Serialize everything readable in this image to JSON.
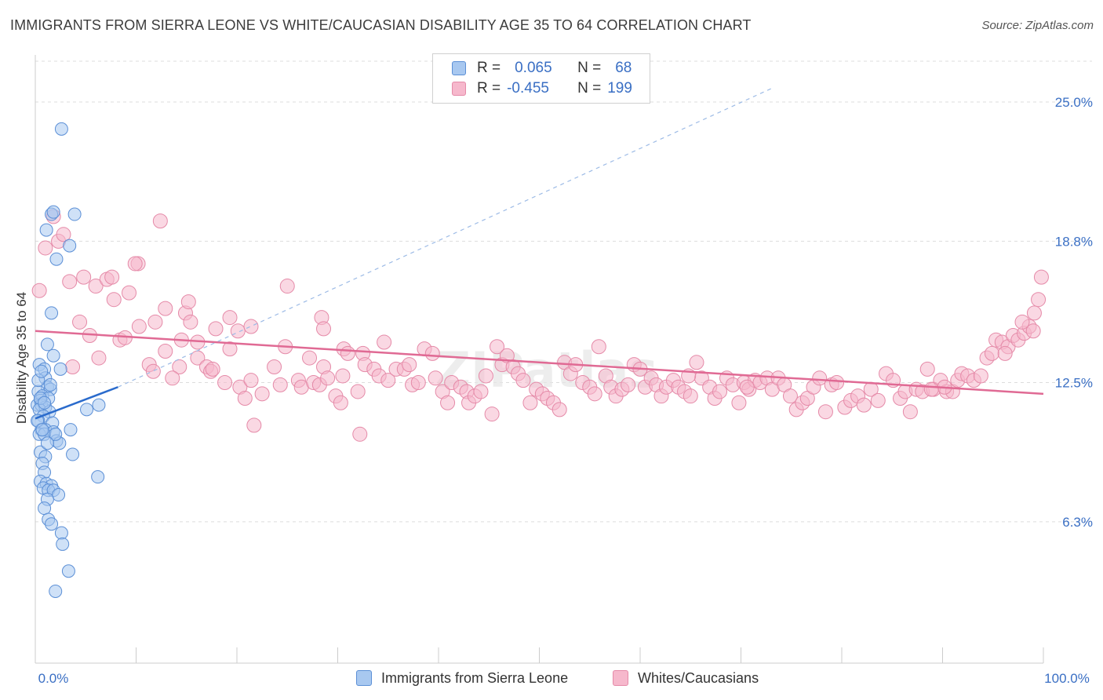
{
  "header": {
    "title": "IMMIGRANTS FROM SIERRA LEONE VS WHITE/CAUCASIAN DISABILITY AGE 35 TO 64 CORRELATION CHART",
    "source": "Source: ZipAtlas.com"
  },
  "legend": {
    "series": [
      {
        "r_label": "R =",
        "r_value": "0.065",
        "n_label": "N =",
        "n_value": "68"
      },
      {
        "r_label": "R =",
        "r_value": "-0.455",
        "n_label": "N =",
        "n_value": "199"
      }
    ]
  },
  "bottom_legend": {
    "items": [
      "Immigrants from Sierra Leone",
      "Whites/Caucasians"
    ]
  },
  "colors": {
    "blue_fill": "#a8c8f0",
    "blue_stroke": "#5b8fd6",
    "blue_line": "#2a6bcc",
    "pink_fill": "#f6b8cc",
    "pink_stroke": "#e58aa8",
    "pink_line": "#e06a94",
    "grid": "#dddddd",
    "accent": "#3a6fc4"
  },
  "chart_data": {
    "type": "scatter",
    "title": "IMMIGRANTS FROM SIERRA LEONE VS WHITE/CAUCASIAN DISABILITY AGE 35 TO 64 CORRELATION CHART",
    "xlabel": "",
    "ylabel": "Disability Age 35 to 64",
    "xlim": [
      0,
      100
    ],
    "ylim": [
      0,
      27.1
    ],
    "x_tick_labels": [
      "0.0%",
      "100.0%"
    ],
    "y_ticks": [
      6.3,
      12.5,
      18.8,
      25.0
    ],
    "y_tick_labels": [
      "6.3%",
      "12.5%",
      "18.8%",
      "25.0%"
    ],
    "grid": true,
    "legend_position": "top-center",
    "watermark": "ZIPatlas",
    "series": [
      {
        "name": "Immigrants from Sierra Leone",
        "r": 0.065,
        "n": 68,
        "trend": {
          "x": [
            0,
            8.2
          ],
          "y": [
            10.9,
            12.3
          ]
        },
        "trend_extended": {
          "x": [
            8.2,
            73
          ],
          "y": [
            12.3,
            25.6
          ]
        },
        "points": [
          [
            2.6,
            23.8
          ],
          [
            1.6,
            20.0
          ],
          [
            1.8,
            20.1
          ],
          [
            3.9,
            20.0
          ],
          [
            1.1,
            19.3
          ],
          [
            3.4,
            18.6
          ],
          [
            2.1,
            18.0
          ],
          [
            1.6,
            15.6
          ],
          [
            1.2,
            14.2
          ],
          [
            1.8,
            13.7
          ],
          [
            2.5,
            13.1
          ],
          [
            0.4,
            13.3
          ],
          [
            0.9,
            13.1
          ],
          [
            1.0,
            12.7
          ],
          [
            1.2,
            12.3
          ],
          [
            1.5,
            12.2
          ],
          [
            0.3,
            12.1
          ],
          [
            0.7,
            11.9
          ],
          [
            1.3,
            11.8
          ],
          [
            0.5,
            11.7
          ],
          [
            0.2,
            11.5
          ],
          [
            0.6,
            11.5
          ],
          [
            1.0,
            11.4
          ],
          [
            0.4,
            11.3
          ],
          [
            1.4,
            11.2
          ],
          [
            0.8,
            11.0
          ],
          [
            0.3,
            10.8
          ],
          [
            1.7,
            10.7
          ],
          [
            0.6,
            10.4
          ],
          [
            1.0,
            10.4
          ],
          [
            3.5,
            10.4
          ],
          [
            0.4,
            10.2
          ],
          [
            1.8,
            10.3
          ],
          [
            0.9,
            10.2
          ],
          [
            2.1,
            9.9
          ],
          [
            2.4,
            9.8
          ],
          [
            0.5,
            9.4
          ],
          [
            1.0,
            9.2
          ],
          [
            3.7,
            9.3
          ],
          [
            0.7,
            8.9
          ],
          [
            0.9,
            8.5
          ],
          [
            0.5,
            8.1
          ],
          [
            1.1,
            8.0
          ],
          [
            1.6,
            7.9
          ],
          [
            0.8,
            7.8
          ],
          [
            1.3,
            7.7
          ],
          [
            1.8,
            7.7
          ],
          [
            2.3,
            7.5
          ],
          [
            1.2,
            7.3
          ],
          [
            0.9,
            6.9
          ],
          [
            1.3,
            6.4
          ],
          [
            1.6,
            6.2
          ],
          [
            2.6,
            5.8
          ],
          [
            2.7,
            5.3
          ],
          [
            3.3,
            4.1
          ],
          [
            2.0,
            3.2
          ],
          [
            5.1,
            11.3
          ],
          [
            6.3,
            11.5
          ],
          [
            6.2,
            8.3
          ],
          [
            0.2,
            10.8
          ],
          [
            0.5,
            11.8
          ],
          [
            0.9,
            11.6
          ],
          [
            1.5,
            12.4
          ],
          [
            0.3,
            12.6
          ],
          [
            0.6,
            13.0
          ],
          [
            2.0,
            10.2
          ],
          [
            1.2,
            9.8
          ],
          [
            0.7,
            10.4
          ]
        ]
      },
      {
        "name": "Whites/Caucasians",
        "r": -0.455,
        "n": 199,
        "trend": {
          "x": [
            0,
            100
          ],
          "y": [
            14.8,
            12.0
          ]
        },
        "points": [
          [
            1.8,
            19.9
          ],
          [
            1.0,
            18.5
          ],
          [
            2.3,
            18.8
          ],
          [
            2.8,
            19.1
          ],
          [
            0.4,
            16.6
          ],
          [
            3.4,
            17.0
          ],
          [
            4.8,
            17.2
          ],
          [
            6.0,
            16.8
          ],
          [
            7.1,
            17.1
          ],
          [
            7.6,
            17.2
          ],
          [
            10.2,
            17.8
          ],
          [
            9.9,
            17.8
          ],
          [
            12.4,
            19.7
          ],
          [
            7.8,
            16.2
          ],
          [
            9.3,
            16.5
          ],
          [
            4.4,
            15.2
          ],
          [
            5.4,
            14.6
          ],
          [
            8.4,
            14.4
          ],
          [
            8.9,
            14.5
          ],
          [
            10.3,
            15.0
          ],
          [
            11.9,
            15.2
          ],
          [
            12.9,
            15.8
          ],
          [
            14.5,
            14.4
          ],
          [
            14.9,
            15.6
          ],
          [
            15.2,
            16.1
          ],
          [
            15.4,
            15.2
          ],
          [
            16.1,
            14.3
          ],
          [
            17.9,
            14.9
          ],
          [
            19.3,
            15.4
          ],
          [
            20.1,
            14.8
          ],
          [
            21.4,
            15.0
          ],
          [
            25.0,
            16.8
          ],
          [
            28.4,
            15.4
          ],
          [
            28.6,
            14.9
          ],
          [
            6.3,
            13.6
          ],
          [
            11.3,
            13.3
          ],
          [
            12.9,
            13.9
          ],
          [
            14.3,
            13.2
          ],
          [
            16.1,
            13.6
          ],
          [
            17.0,
            13.2
          ],
          [
            17.4,
            13.0
          ],
          [
            17.6,
            13.1
          ],
          [
            18.8,
            12.5
          ],
          [
            19.3,
            14.0
          ],
          [
            20.3,
            12.3
          ],
          [
            21.4,
            12.6
          ],
          [
            22.5,
            12.0
          ],
          [
            23.7,
            13.2
          ],
          [
            24.3,
            12.4
          ],
          [
            24.8,
            14.1
          ],
          [
            26.1,
            12.6
          ],
          [
            26.4,
            12.3
          ],
          [
            27.2,
            13.6
          ],
          [
            27.6,
            12.5
          ],
          [
            28.2,
            12.4
          ],
          [
            28.6,
            13.2
          ],
          [
            29.0,
            12.7
          ],
          [
            29.8,
            11.9
          ],
          [
            30.3,
            11.6
          ],
          [
            30.6,
            14.0
          ],
          [
            31.0,
            13.8
          ],
          [
            32.0,
            12.1
          ],
          [
            32.5,
            13.8
          ],
          [
            32.7,
            13.3
          ],
          [
            33.6,
            13.1
          ],
          [
            34.1,
            12.8
          ],
          [
            34.6,
            14.3
          ],
          [
            35.0,
            12.6
          ],
          [
            35.8,
            13.1
          ],
          [
            36.6,
            13.1
          ],
          [
            37.1,
            13.3
          ],
          [
            37.4,
            12.4
          ],
          [
            38.0,
            12.5
          ],
          [
            38.6,
            14.0
          ],
          [
            39.4,
            13.8
          ],
          [
            39.7,
            12.7
          ],
          [
            40.4,
            12.1
          ],
          [
            40.9,
            11.6
          ],
          [
            41.3,
            12.5
          ],
          [
            42.2,
            12.3
          ],
          [
            42.8,
            12.1
          ],
          [
            43.0,
            11.6
          ],
          [
            43.6,
            11.9
          ],
          [
            44.2,
            12.1
          ],
          [
            44.7,
            12.8
          ],
          [
            45.3,
            11.1
          ],
          [
            45.8,
            14.1
          ],
          [
            46.3,
            13.3
          ],
          [
            46.8,
            13.7
          ],
          [
            47.4,
            13.2
          ],
          [
            47.9,
            12.9
          ],
          [
            48.4,
            12.6
          ],
          [
            49.1,
            11.6
          ],
          [
            49.7,
            12.2
          ],
          [
            50.3,
            12.0
          ],
          [
            50.8,
            11.8
          ],
          [
            51.4,
            11.6
          ],
          [
            52.0,
            11.3
          ],
          [
            52.5,
            13.4
          ],
          [
            53.1,
            12.9
          ],
          [
            53.6,
            13.3
          ],
          [
            54.3,
            12.5
          ],
          [
            55.0,
            12.3
          ],
          [
            55.5,
            12.0
          ],
          [
            55.9,
            14.1
          ],
          [
            56.6,
            12.8
          ],
          [
            57.1,
            12.3
          ],
          [
            57.6,
            11.9
          ],
          [
            58.2,
            12.2
          ],
          [
            58.8,
            12.4
          ],
          [
            59.4,
            13.3
          ],
          [
            60.0,
            13.1
          ],
          [
            60.5,
            12.3
          ],
          [
            61.1,
            12.7
          ],
          [
            61.6,
            12.4
          ],
          [
            62.1,
            11.9
          ],
          [
            62.6,
            12.3
          ],
          [
            63.3,
            12.6
          ],
          [
            63.8,
            12.3
          ],
          [
            64.4,
            12.1
          ],
          [
            65.0,
            11.9
          ],
          [
            65.6,
            13.4
          ],
          [
            66.1,
            12.7
          ],
          [
            66.9,
            12.3
          ],
          [
            67.4,
            11.8
          ],
          [
            67.9,
            12.1
          ],
          [
            68.6,
            12.7
          ],
          [
            69.2,
            12.4
          ],
          [
            69.8,
            11.6
          ],
          [
            70.3,
            12.5
          ],
          [
            70.8,
            12.2
          ],
          [
            71.4,
            12.6
          ],
          [
            71.9,
            12.5
          ],
          [
            72.6,
            12.7
          ],
          [
            73.1,
            12.2
          ],
          [
            73.7,
            12.7
          ],
          [
            74.3,
            12.4
          ],
          [
            74.9,
            11.9
          ],
          [
            75.5,
            11.3
          ],
          [
            76.1,
            11.6
          ],
          [
            76.6,
            11.8
          ],
          [
            77.2,
            12.3
          ],
          [
            77.8,
            12.7
          ],
          [
            78.4,
            11.2
          ],
          [
            79.0,
            12.4
          ],
          [
            79.5,
            12.5
          ],
          [
            80.3,
            11.4
          ],
          [
            80.9,
            11.7
          ],
          [
            81.6,
            11.9
          ],
          [
            82.2,
            11.5
          ],
          [
            82.9,
            12.2
          ],
          [
            83.6,
            11.7
          ],
          [
            84.4,
            12.9
          ],
          [
            85.1,
            12.6
          ],
          [
            85.8,
            11.8
          ],
          [
            86.3,
            12.1
          ],
          [
            86.8,
            11.2
          ],
          [
            87.4,
            12.2
          ],
          [
            88.0,
            12.1
          ],
          [
            88.5,
            13.1
          ],
          [
            89.1,
            12.2
          ],
          [
            89.8,
            12.6
          ],
          [
            90.4,
            12.1
          ],
          [
            91.0,
            12.1
          ],
          [
            91.5,
            12.6
          ],
          [
            91.9,
            12.9
          ],
          [
            92.5,
            12.8
          ],
          [
            93.1,
            12.6
          ],
          [
            93.8,
            12.8
          ],
          [
            94.4,
            13.6
          ],
          [
            94.9,
            13.8
          ],
          [
            95.3,
            14.4
          ],
          [
            95.9,
            14.3
          ],
          [
            96.5,
            14.1
          ],
          [
            97.0,
            14.6
          ],
          [
            97.5,
            14.4
          ],
          [
            98.1,
            14.7
          ],
          [
            98.6,
            15.0
          ],
          [
            99.1,
            15.6
          ],
          [
            99.5,
            16.2
          ],
          [
            99.8,
            17.2
          ],
          [
            96.2,
            13.8
          ],
          [
            97.9,
            15.2
          ],
          [
            99.0,
            14.8
          ],
          [
            90.2,
            12.3
          ],
          [
            88.9,
            12.2
          ],
          [
            11.7,
            13.0
          ],
          [
            13.6,
            12.7
          ],
          [
            3.7,
            13.2
          ],
          [
            30.5,
            12.8
          ],
          [
            32.2,
            10.2
          ],
          [
            20.8,
            11.8
          ],
          [
            21.7,
            10.6
          ],
          [
            64.8,
            12.8
          ],
          [
            70.6,
            12.3
          ]
        ]
      }
    ]
  }
}
